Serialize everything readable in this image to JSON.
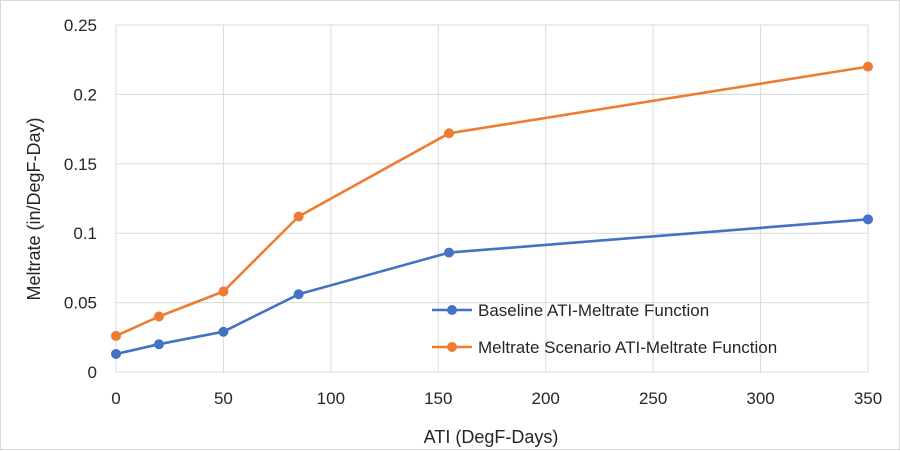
{
  "chart_data": {
    "type": "line",
    "title": "",
    "xlabel": "ATI (DegF-Days)",
    "ylabel": "Meltrate (in/DegF-Day)",
    "xlim": [
      0,
      350
    ],
    "ylim": [
      0,
      0.25
    ],
    "x_ticks": [
      "0",
      "50",
      "100",
      "150",
      "200",
      "250",
      "300",
      "350"
    ],
    "y_ticks": [
      "0",
      "0.05",
      "0.1",
      "0.15",
      "0.2",
      "0.25"
    ],
    "grid": true,
    "legend_position": "bottom-right",
    "series": [
      {
        "name": "Baseline ATI-Meltrate Function",
        "color": "#4472C4",
        "x": [
          0,
          20,
          50,
          85,
          155,
          350
        ],
        "y": [
          0.013,
          0.02,
          0.029,
          0.056,
          0.086,
          0.11
        ]
      },
      {
        "name": "Meltrate Scenario ATI-Meltrate Function",
        "color": "#ED7D31",
        "x": [
          0,
          20,
          50,
          85,
          155,
          350
        ],
        "y": [
          0.026,
          0.04,
          0.058,
          0.112,
          0.172,
          0.22
        ]
      }
    ]
  }
}
